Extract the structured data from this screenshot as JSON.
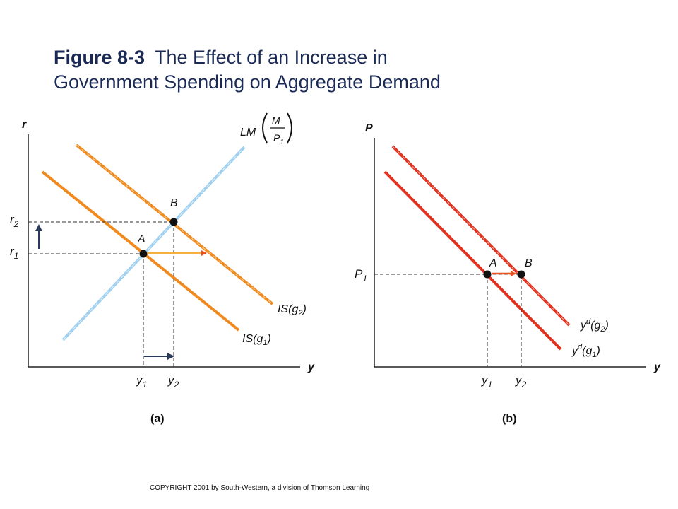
{
  "title": {
    "figure": "Figure 8-3",
    "line1": "The Effect of an Increase in",
    "line2": "Government Spending on Aggregate Demand"
  },
  "panel_a": {
    "y_axis": "r",
    "x_axis": "y",
    "lm_label": "LM",
    "lm_numer": "M",
    "lm_denom": "P",
    "lm_sub": "1",
    "is1_label": "IS(g",
    "is1_sub": "1",
    "is2_label": "IS(g",
    "is2_sub": "2",
    "r1": "r",
    "r1_sub": "1",
    "r2": "r",
    "r2_sub": "2",
    "y1": "y",
    "y1_sub": "1",
    "y2": "y",
    "y2_sub": "2",
    "point_a": "A",
    "point_b": "B",
    "caption": "(a)"
  },
  "panel_b": {
    "y_axis": "P",
    "x_axis": "y",
    "p1": "P",
    "p1_sub": "1",
    "yd1_label": "y",
    "yd1_sup": "d",
    "yd1_paren": "(g",
    "yd1_sub": "1",
    "yd2_label": "y",
    "yd2_sup": "d",
    "yd2_paren": "(g",
    "yd2_sub": "2",
    "y1": "y",
    "y1_sub": "1",
    "y2": "y",
    "y2_sub": "2",
    "point_a": "A",
    "point_b": "B",
    "caption": "(b)"
  },
  "colors": {
    "is": "#f08a1e",
    "lm": "#9fd0ef",
    "yd": "#e2321f",
    "arrow": "#e8501e",
    "axis": "#222222"
  },
  "copyright": "COPYRIGHT 2001 by South-Western, a division of Thomson Learning"
}
